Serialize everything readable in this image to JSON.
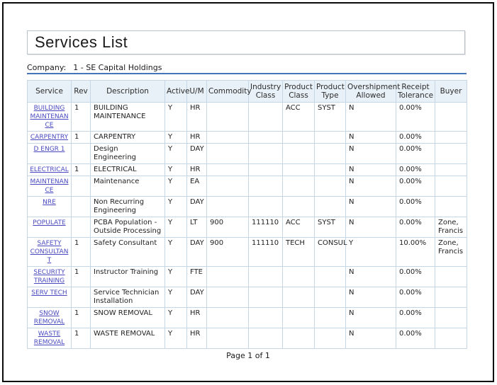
{
  "page": {
    "title": "Services List",
    "company_label": "Company:",
    "company_value": "1 - SE Capital Holdings",
    "footer_text": "Page 1 of 1"
  },
  "colors": {
    "rule_blue": "#4477b3",
    "table_border": "#c6d6e4",
    "header_background": "#e9f1f8",
    "link_blue": "#4a4ac0",
    "frame_black": "#0a0a0a"
  },
  "table": {
    "columns": [
      {
        "key": "service",
        "label": "Service"
      },
      {
        "key": "rev",
        "label": "Rev"
      },
      {
        "key": "description",
        "label": "Description"
      },
      {
        "key": "active",
        "label": "Active"
      },
      {
        "key": "um",
        "label": "U/M"
      },
      {
        "key": "commodity",
        "label": "Commodity"
      },
      {
        "key": "industry_class",
        "label": "Industry Class"
      },
      {
        "key": "product_class",
        "label": "Product Class"
      },
      {
        "key": "product_type",
        "label": "Product Type"
      },
      {
        "key": "overshipment_allowed",
        "label": "Overshipment Allowed"
      },
      {
        "key": "receipt_tolerance",
        "label": "Receipt Tolerance"
      },
      {
        "key": "buyer",
        "label": "Buyer"
      }
    ],
    "rows": [
      {
        "service": "BUILDING MAINTENANCE",
        "rev": "1",
        "description": "BUILDING MAINTENANCE",
        "active": "Y",
        "um": "HR",
        "commodity": "",
        "industry_class": "",
        "product_class": "ACC",
        "product_type": "SYST",
        "overshipment_allowed": "N",
        "receipt_tolerance": "0.00%",
        "buyer": ""
      },
      {
        "service": "CARPENTRY",
        "rev": "1",
        "description": "CARPENTRY",
        "active": "Y",
        "um": "HR",
        "commodity": "",
        "industry_class": "",
        "product_class": "",
        "product_type": "",
        "overshipment_allowed": "N",
        "receipt_tolerance": "0.00%",
        "buyer": ""
      },
      {
        "service": "D ENGR 1",
        "rev": "",
        "description": "Design Engineering",
        "active": "Y",
        "um": "DAY",
        "commodity": "",
        "industry_class": "",
        "product_class": "",
        "product_type": "",
        "overshipment_allowed": "N",
        "receipt_tolerance": "0.00%",
        "buyer": ""
      },
      {
        "service": "ELECTRICAL",
        "rev": "1",
        "description": "ELECTRICAL",
        "active": "Y",
        "um": "HR",
        "commodity": "",
        "industry_class": "",
        "product_class": "",
        "product_type": "",
        "overshipment_allowed": "N",
        "receipt_tolerance": "0.00%",
        "buyer": ""
      },
      {
        "service": "MAINTENANCE",
        "rev": "",
        "description": "Maintenance",
        "active": "Y",
        "um": "EA",
        "commodity": "",
        "industry_class": "",
        "product_class": "",
        "product_type": "",
        "overshipment_allowed": "N",
        "receipt_tolerance": "0.00%",
        "buyer": ""
      },
      {
        "service": "NRE",
        "rev": "",
        "description": "Non Recurring Engineering",
        "active": "Y",
        "um": "DAY",
        "commodity": "",
        "industry_class": "",
        "product_class": "",
        "product_type": "",
        "overshipment_allowed": "N",
        "receipt_tolerance": "0.00%",
        "buyer": ""
      },
      {
        "service": "POPULATE",
        "rev": "",
        "description": "PCBA Population - Outside Processing",
        "active": "Y",
        "um": "LT",
        "commodity": "900",
        "industry_class": "111110",
        "product_class": "ACC",
        "product_type": "SYST",
        "overshipment_allowed": "N",
        "receipt_tolerance": "0.00%",
        "buyer": "Zone, Francis"
      },
      {
        "service": "SAFETY CONSULTANT",
        "rev": "1",
        "description": "Safety Consultant",
        "active": "Y",
        "um": "DAY",
        "commodity": "900",
        "industry_class": "111110",
        "product_class": "TECH",
        "product_type": "CONSUL",
        "overshipment_allowed": "Y",
        "receipt_tolerance": "10.00%",
        "buyer": "Zone, Francis"
      },
      {
        "service": "SECURITY TRAINING",
        "rev": "1",
        "description": "Instructor Training",
        "active": "Y",
        "um": "FTE",
        "commodity": "",
        "industry_class": "",
        "product_class": "",
        "product_type": "",
        "overshipment_allowed": "N",
        "receipt_tolerance": "0.00%",
        "buyer": ""
      },
      {
        "service": "SERV TECH",
        "rev": "",
        "description": "Service Technician Installation",
        "active": "Y",
        "um": "DAY",
        "commodity": "",
        "industry_class": "",
        "product_class": "",
        "product_type": "",
        "overshipment_allowed": "N",
        "receipt_tolerance": "0.00%",
        "buyer": ""
      },
      {
        "service": "SNOW REMOVAL",
        "rev": "1",
        "description": "SNOW REMOVAL",
        "active": "Y",
        "um": "HR",
        "commodity": "",
        "industry_class": "",
        "product_class": "",
        "product_type": "",
        "overshipment_allowed": "N",
        "receipt_tolerance": "0.00%",
        "buyer": ""
      },
      {
        "service": "WASTE REMOVAL",
        "rev": "1",
        "description": "WASTE REMOVAL",
        "active": "Y",
        "um": "HR",
        "commodity": "",
        "industry_class": "",
        "product_class": "",
        "product_type": "",
        "overshipment_allowed": "N",
        "receipt_tolerance": "0.00%",
        "buyer": ""
      }
    ]
  }
}
